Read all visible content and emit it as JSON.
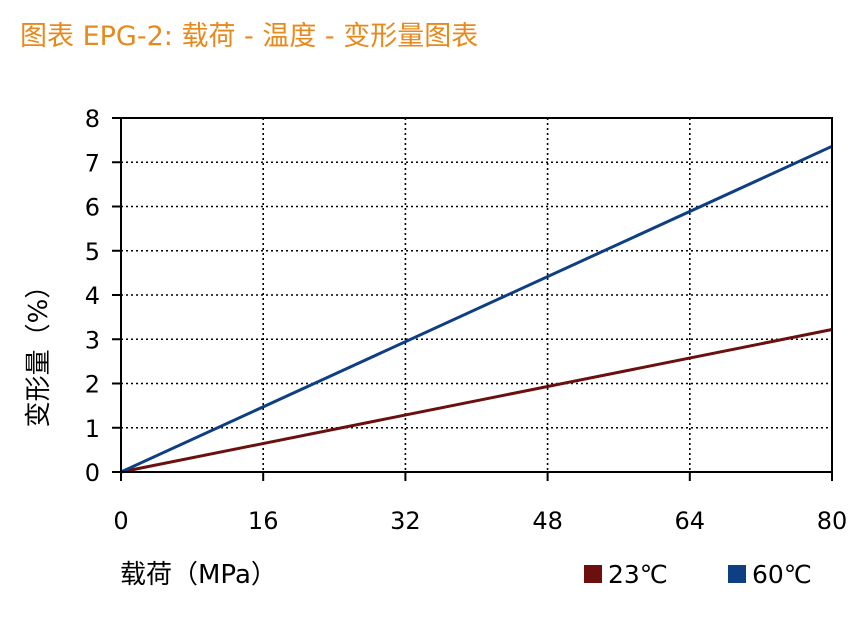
{
  "chart_data": {
    "type": "line",
    "title": "图表 EPG-2: 载荷 - 温度 - 变形量图表",
    "xlabel": "载荷（MPa）",
    "ylabel": "变形量（%）",
    "xlim": [
      0,
      80
    ],
    "ylim": [
      0,
      8
    ],
    "x_ticks": [
      "0",
      "16",
      "32",
      "48",
      "64",
      "80"
    ],
    "y_ticks": [
      "0",
      "1",
      "2",
      "3",
      "4",
      "5",
      "6",
      "7",
      "8"
    ],
    "grid": true,
    "legend_position": "bottom-right",
    "series": [
      {
        "name": "23℃",
        "color": "#6b0f0f",
        "x": [
          0,
          80
        ],
        "y": [
          0,
          3.22
        ]
      },
      {
        "name": "60℃",
        "color": "#0e3f82",
        "x": [
          0,
          80
        ],
        "y": [
          0,
          7.36
        ]
      }
    ]
  }
}
